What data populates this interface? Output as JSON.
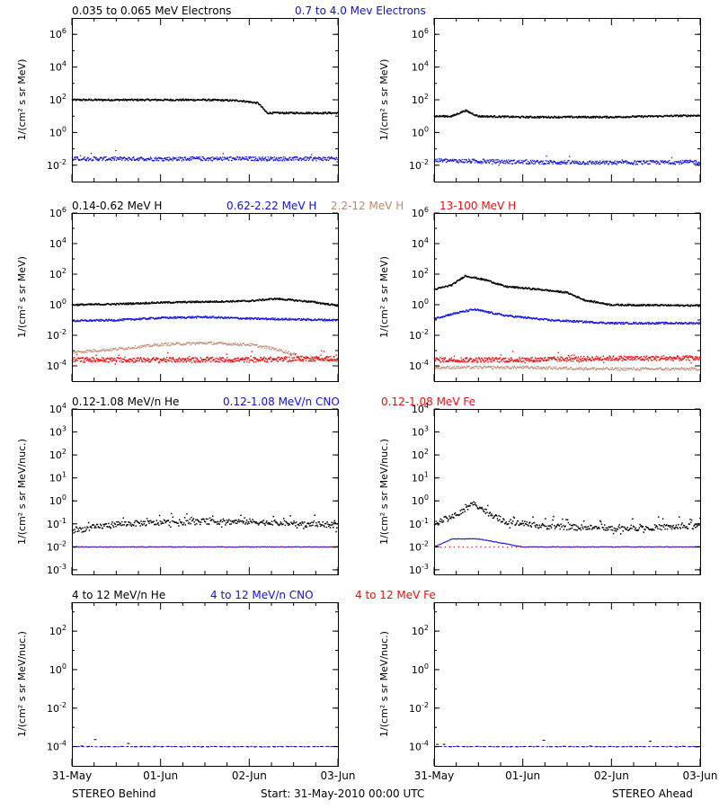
{
  "colors": {
    "black": "#000000",
    "blue": "#1010dd",
    "tan": "#c08870",
    "red": "#e81010"
  },
  "footer": {
    "left_label": "STEREO Behind",
    "center_label": "Start: 31-May-2010 00:00 UTC",
    "right_label": "STEREO Ahead"
  },
  "x_ticks": [
    "31-May",
    "01-Jun",
    "02-Jun",
    "03-Jun"
  ],
  "rows": [
    {
      "legend": [
        {
          "text": "0.035 to 0.065 MeV Electrons",
          "color": "black"
        },
        {
          "text": "0.7 to 4.0 Mev Electrons",
          "color": "blue"
        }
      ],
      "ylabel": "1/(cm² s sr MeV)",
      "yticks": [
        [
          "10",
          "6"
        ],
        [
          "10",
          "4"
        ],
        [
          "10",
          "2"
        ],
        [
          "10",
          "0"
        ],
        [
          "10",
          "-2"
        ]
      ]
    },
    {
      "legend": [
        {
          "text": "0.14-0.62 MeV H",
          "color": "black"
        },
        {
          "text": "0.62-2.22 MeV H",
          "color": "blue"
        },
        {
          "text": "2.2-12 MeV H",
          "color": "tan"
        },
        {
          "text": "13-100 MeV H",
          "color": "red"
        }
      ],
      "ylabel": "1/(cm² s sr MeV)",
      "yticks": [
        [
          "10",
          "6"
        ],
        [
          "10",
          "4"
        ],
        [
          "10",
          "2"
        ],
        [
          "10",
          "0"
        ],
        [
          "10",
          "-2"
        ],
        [
          "10",
          "-4"
        ]
      ]
    },
    {
      "legend": [
        {
          "text": "0.12-1.08 MeV/n He",
          "color": "black"
        },
        {
          "text": "0.12-1.08 MeV/n CNO",
          "color": "blue"
        },
        {
          "text": "0.12-1.08 MeV Fe",
          "color": "red"
        }
      ],
      "ylabel": "1/(cm² s sr MeV/nuc.)",
      "yticks": [
        [
          "10",
          "4"
        ],
        [
          "10",
          "3"
        ],
        [
          "10",
          "2"
        ],
        [
          "10",
          "1"
        ],
        [
          "10",
          "0"
        ],
        [
          "10",
          "-1"
        ],
        [
          "10",
          "-2"
        ],
        [
          "10",
          "-3"
        ]
      ]
    },
    {
      "legend": [
        {
          "text": "4 to 12 MeV/n He",
          "color": "black"
        },
        {
          "text": "4 to 12 MeV/n CNO",
          "color": "blue"
        },
        {
          "text": "4 to 12 MeV Fe",
          "color": "red"
        }
      ],
      "ylabel": "1/(cm² s sr MeV/nuc.)",
      "yticks": [
        [
          "10",
          "2"
        ],
        [
          "10",
          "0"
        ],
        [
          "10",
          "-2"
        ],
        [
          "10",
          "-4"
        ]
      ]
    }
  ],
  "chart_data": [
    {
      "type": "scatter",
      "spacecraft": "STEREO Behind",
      "panel": "electrons",
      "x_unit": "days since 31-May-2010 00:00 UTC",
      "xlim": [
        0,
        3
      ],
      "ylabel": "1/(cm² s sr MeV)",
      "yscale": "log",
      "ylim_log10": [
        -3,
        7
      ],
      "series": [
        {
          "name": "0.035 to 0.065 MeV Electrons",
          "color": "black",
          "points_log10": [
            [
              0,
              2.0
            ],
            [
              0.5,
              2.0
            ],
            [
              1.0,
              2.0
            ],
            [
              1.5,
              2.0
            ],
            [
              1.9,
              1.95
            ],
            [
              2.1,
              1.8
            ],
            [
              2.2,
              1.2
            ],
            [
              2.5,
              1.2
            ],
            [
              3.0,
              1.2
            ]
          ]
        },
        {
          "name": "0.7 to 4.0 Mev Electrons",
          "color": "blue",
          "points_log10": [
            [
              0,
              -1.6
            ],
            [
              1.0,
              -1.6
            ],
            [
              2.0,
              -1.6
            ],
            [
              3.0,
              -1.6
            ]
          ]
        }
      ]
    },
    {
      "type": "scatter",
      "spacecraft": "STEREO Ahead",
      "panel": "electrons",
      "x_unit": "days since 31-May-2010 00:00 UTC",
      "xlim": [
        0,
        3
      ],
      "ylabel": "1/(cm² s sr MeV)",
      "yscale": "log",
      "ylim_log10": [
        -3,
        7
      ],
      "series": [
        {
          "name": "0.035 to 0.065 MeV Electrons",
          "color": "black",
          "points_log10": [
            [
              0,
              1.0
            ],
            [
              0.2,
              1.0
            ],
            [
              0.35,
              1.35
            ],
            [
              0.5,
              1.0
            ],
            [
              1.0,
              0.95
            ],
            [
              2.0,
              0.95
            ],
            [
              3.0,
              1.05
            ]
          ]
        },
        {
          "name": "0.7 to 4.0 Mev Electrons",
          "color": "blue",
          "points_log10": [
            [
              0,
              -1.7
            ],
            [
              1.0,
              -1.8
            ],
            [
              2.0,
              -1.85
            ],
            [
              3.0,
              -1.8
            ]
          ]
        }
      ]
    },
    {
      "type": "scatter",
      "spacecraft": "STEREO Behind",
      "panel": "protons",
      "x_unit": "days since 31-May-2010 00:00 UTC",
      "xlim": [
        0,
        3
      ],
      "ylabel": "1/(cm² s sr MeV)",
      "yscale": "log",
      "ylim_log10": [
        -5,
        6
      ],
      "series": [
        {
          "name": "0.14-0.62 MeV H",
          "color": "black",
          "points_log10": [
            [
              0,
              0.0
            ],
            [
              0.5,
              0.05
            ],
            [
              1.0,
              0.15
            ],
            [
              1.5,
              0.2
            ],
            [
              2.0,
              0.25
            ],
            [
              2.3,
              0.4
            ],
            [
              2.7,
              0.2
            ],
            [
              3.0,
              -0.05
            ]
          ]
        },
        {
          "name": "0.62-2.22 MeV H",
          "color": "blue",
          "points_log10": [
            [
              0,
              -1.05
            ],
            [
              0.5,
              -1.0
            ],
            [
              1.0,
              -0.85
            ],
            [
              1.5,
              -0.8
            ],
            [
              2.0,
              -0.9
            ],
            [
              3.0,
              -1.0
            ]
          ]
        },
        {
          "name": "2.2-12 MeV H",
          "color": "tan",
          "points_log10": [
            [
              0,
              -3.1
            ],
            [
              0.5,
              -2.9
            ],
            [
              1.0,
              -2.6
            ],
            [
              1.5,
              -2.5
            ],
            [
              2.0,
              -2.6
            ],
            [
              2.3,
              -2.9
            ],
            [
              2.6,
              -3.4
            ],
            [
              3.0,
              -3.7
            ]
          ]
        },
        {
          "name": "13-100 MeV H",
          "color": "red",
          "points_log10": [
            [
              0,
              -3.6
            ],
            [
              1.0,
              -3.6
            ],
            [
              2.0,
              -3.6
            ],
            [
              3.0,
              -3.5
            ]
          ]
        }
      ]
    },
    {
      "type": "scatter",
      "spacecraft": "STEREO Ahead",
      "panel": "protons",
      "x_unit": "days since 31-May-2010 00:00 UTC",
      "xlim": [
        0,
        3
      ],
      "ylabel": "1/(cm² s sr MeV)",
      "yscale": "log",
      "ylim_log10": [
        -5,
        6
      ],
      "series": [
        {
          "name": "0.14-0.62 MeV H",
          "color": "black",
          "points_log10": [
            [
              0,
              1.0
            ],
            [
              0.2,
              1.3
            ],
            [
              0.35,
              1.9
            ],
            [
              0.6,
              1.6
            ],
            [
              0.8,
              1.2
            ],
            [
              1.2,
              1.0
            ],
            [
              1.5,
              0.8
            ],
            [
              1.7,
              0.3
            ],
            [
              2.0,
              0.0
            ],
            [
              3.0,
              -0.05
            ]
          ]
        },
        {
          "name": "0.62-2.22 MeV H",
          "color": "blue",
          "points_log10": [
            [
              0,
              -0.9
            ],
            [
              0.2,
              -0.6
            ],
            [
              0.45,
              -0.3
            ],
            [
              0.8,
              -0.7
            ],
            [
              1.3,
              -1.0
            ],
            [
              2.0,
              -1.2
            ],
            [
              3.0,
              -1.2
            ]
          ]
        },
        {
          "name": "2.2-12 MeV H",
          "color": "tan",
          "points_log10": [
            [
              0,
              -4.1
            ],
            [
              1.0,
              -4.1
            ],
            [
              2.0,
              -4.2
            ],
            [
              3.0,
              -4.2
            ]
          ]
        },
        {
          "name": "13-100 MeV H",
          "color": "red",
          "points_log10": [
            [
              0,
              -3.6
            ],
            [
              1.0,
              -3.6
            ],
            [
              2.0,
              -3.5
            ],
            [
              3.0,
              -3.5
            ]
          ]
        }
      ]
    },
    {
      "type": "scatter",
      "spacecraft": "STEREO Behind",
      "panel": "heavy ions 0.12-1.08",
      "x_unit": "days since 31-May-2010 00:00 UTC",
      "xlim": [
        0,
        3
      ],
      "ylabel": "1/(cm² s sr MeV/nuc.)",
      "yscale": "log",
      "ylim_log10": [
        -3.2,
        4
      ],
      "series": [
        {
          "name": "0.12-1.08 MeV/n He",
          "color": "black",
          "points_log10": [
            [
              0,
              -1.3
            ],
            [
              0.5,
              -1.0
            ],
            [
              1.0,
              -0.95
            ],
            [
              1.5,
              -0.9
            ],
            [
              2.0,
              -0.9
            ],
            [
              2.5,
              -1.0
            ],
            [
              3.0,
              -1.05
            ]
          ]
        },
        {
          "name": "0.12-1.08 MeV/n CNO",
          "color": "blue",
          "points_log10": [
            [
              0,
              -2.0
            ],
            [
              1.0,
              -2.0
            ],
            [
              2.0,
              -2.0
            ],
            [
              3.0,
              -2.0
            ]
          ]
        },
        {
          "name": "0.12-1.08 MeV Fe",
          "color": "red",
          "points_log10": [
            [
              0,
              -2.0
            ],
            [
              1.0,
              -2.0
            ],
            [
              2.0,
              -2.0
            ],
            [
              3.0,
              -2.0
            ]
          ]
        }
      ]
    },
    {
      "type": "scatter",
      "spacecraft": "STEREO Ahead",
      "panel": "heavy ions 0.12-1.08",
      "x_unit": "days since 31-May-2010 00:00 UTC",
      "xlim": [
        0,
        3
      ],
      "ylabel": "1/(cm² s sr MeV/nuc.)",
      "yscale": "log",
      "ylim_log10": [
        -3.2,
        4
      ],
      "series": [
        {
          "name": "0.12-1.08 MeV/n He",
          "color": "black",
          "points_log10": [
            [
              0,
              -1.0
            ],
            [
              0.3,
              -0.5
            ],
            [
              0.45,
              -0.1
            ],
            [
              0.6,
              -0.5
            ],
            [
              0.8,
              -0.9
            ],
            [
              1.2,
              -1.1
            ],
            [
              2.0,
              -1.2
            ],
            [
              3.0,
              -1.1
            ]
          ]
        },
        {
          "name": "0.12-1.08 MeV/n CNO",
          "color": "blue",
          "points_log10": [
            [
              0,
              -2.0
            ],
            [
              0.2,
              -1.65
            ],
            [
              0.5,
              -1.65
            ],
            [
              1.0,
              -2.0
            ],
            [
              2.0,
              -2.0
            ],
            [
              3.0,
              -2.0
            ]
          ]
        },
        {
          "name": "0.12-1.08 MeV Fe",
          "color": "red",
          "points_log10": [
            [
              0,
              -2.0
            ],
            [
              1.0,
              -2.0
            ],
            [
              2.0,
              -2.0
            ],
            [
              3.0,
              -2.0
            ]
          ]
        }
      ]
    },
    {
      "type": "scatter",
      "spacecraft": "STEREO Behind",
      "panel": "heavy ions 4-12",
      "x_unit": "days since 31-May-2010 00:00 UTC",
      "xlim": [
        0,
        3
      ],
      "ylabel": "1/(cm² s sr MeV/nuc.)",
      "yscale": "log",
      "ylim_log10": [
        -5,
        3.5
      ],
      "series": [
        {
          "name": "4 to 12 MeV/n He",
          "color": "black",
          "points_log10": [
            [
              0,
              -4.0
            ],
            [
              1.0,
              -4.0
            ],
            [
              2.0,
              -4.0
            ],
            [
              3.0,
              -4.0
            ]
          ]
        },
        {
          "name": "4 to 12 MeV/n CNO",
          "color": "blue",
          "points_log10": [
            [
              0,
              -4.0
            ],
            [
              1.5,
              -4.0
            ],
            [
              3.0,
              -4.0
            ]
          ]
        },
        {
          "name": "4 to 12 MeV Fe",
          "color": "red",
          "points_log10": [
            [
              0,
              -4.0
            ],
            [
              3.0,
              -4.0
            ]
          ]
        }
      ]
    },
    {
      "type": "scatter",
      "spacecraft": "STEREO Ahead",
      "panel": "heavy ions 4-12",
      "x_unit": "days since 31-May-2010 00:00 UTC",
      "xlim": [
        0,
        3
      ],
      "ylabel": "1/(cm² s sr MeV/nuc.)",
      "yscale": "log",
      "ylim_log10": [
        -5,
        3.5
      ],
      "series": [
        {
          "name": "4 to 12 MeV/n He",
          "color": "black",
          "points_log10": [
            [
              0,
              -4.0
            ],
            [
              1.0,
              -4.0
            ],
            [
              2.0,
              -4.0
            ],
            [
              3.0,
              -4.0
            ]
          ]
        },
        {
          "name": "4 to 12 MeV/n CNO",
          "color": "blue",
          "points_log10": [
            [
              0,
              -4.0
            ],
            [
              1.5,
              -4.0
            ],
            [
              3.0,
              -4.0
            ]
          ]
        },
        {
          "name": "4 to 12 MeV Fe",
          "color": "red",
          "points_log10": [
            [
              0,
              -4.0
            ],
            [
              3.0,
              -4.0
            ]
          ]
        }
      ]
    }
  ]
}
